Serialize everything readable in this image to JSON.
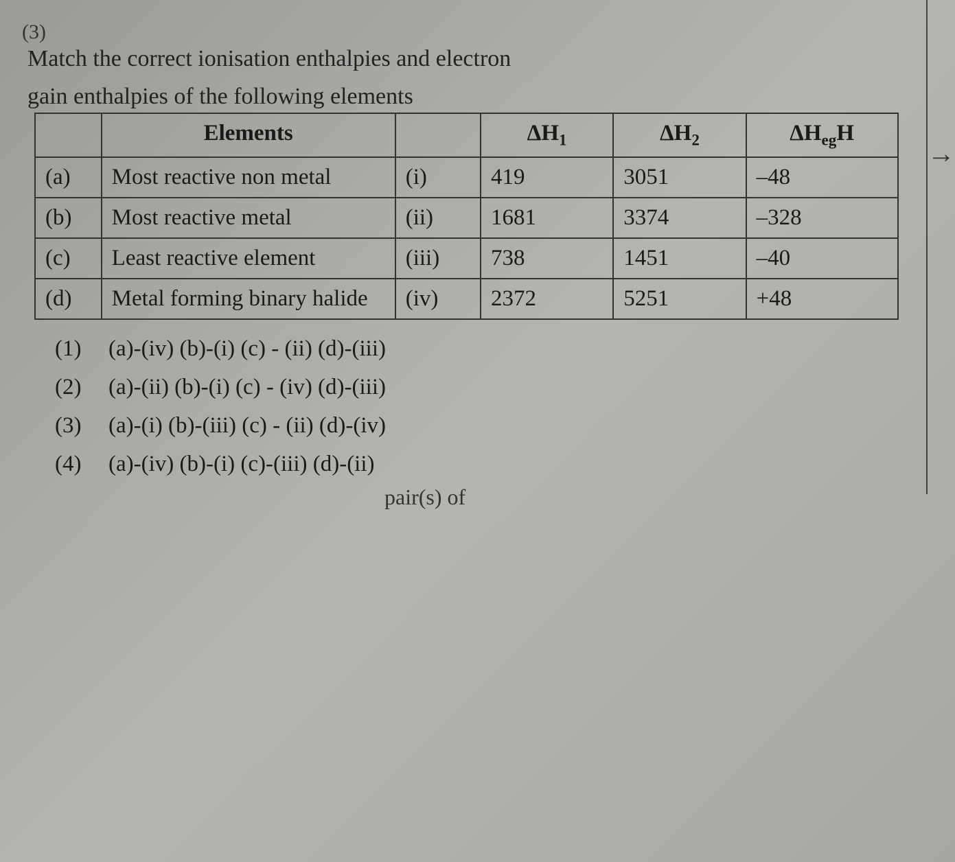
{
  "question": {
    "line1": "Match the correct ionisation enthalpies and electron",
    "line2": "gain enthalpies of the following elements"
  },
  "table": {
    "headers": {
      "elements": "Elements",
      "dh1": "ΔH",
      "dh1_sub": "1",
      "dh2": "ΔH",
      "dh2_sub": "2",
      "dheg": "ΔH",
      "dheg_sub": "eg",
      "dheg_suffix": "H"
    },
    "rows": [
      {
        "tag": "(a)",
        "elem": "Most reactive non metal",
        "roman": "(i)",
        "h1": "419",
        "h2": "3051",
        "heg": "–48"
      },
      {
        "tag": "(b)",
        "elem": "Most reactive metal",
        "roman": "(ii)",
        "h1": "1681",
        "h2": "3374",
        "heg": "–328"
      },
      {
        "tag": "(c)",
        "elem": "Least reactive element",
        "roman": "(iii)",
        "h1": "738",
        "h2": "1451",
        "heg": "–40"
      },
      {
        "tag": "(d)",
        "elem": "Metal forming binary halide",
        "roman": "(iv)",
        "h1": "2372",
        "h2": "5251",
        "heg": "+48"
      }
    ]
  },
  "options": [
    {
      "num": "(1)",
      "text": "(a)-(iv) (b)-(i) (c) - (ii) (d)-(iii)"
    },
    {
      "num": "(2)",
      "text": "(a)-(ii) (b)-(i) (c) - (iv) (d)-(iii)"
    },
    {
      "num": "(3)",
      "text": "(a)-(i) (b)-(iii) (c) - (ii) (d)-(iv)"
    },
    {
      "num": "(4)",
      "text": "(a)-(iv) (b)-(i) (c)-(iii) (d)-(ii)"
    }
  ],
  "footer_fragment": "pair(s) of",
  "top_fragment": "(3)",
  "styling": {
    "font_family": "Georgia, Times New Roman, serif",
    "question_fontsize": 34,
    "table_fontsize": 33,
    "option_fontsize": 33,
    "border_color": "#333",
    "border_width": 2,
    "text_color": "#1a1a1a",
    "bg_gradient": [
      "#9a9a96",
      "#b5b5b0",
      "#a8a8a3"
    ]
  }
}
